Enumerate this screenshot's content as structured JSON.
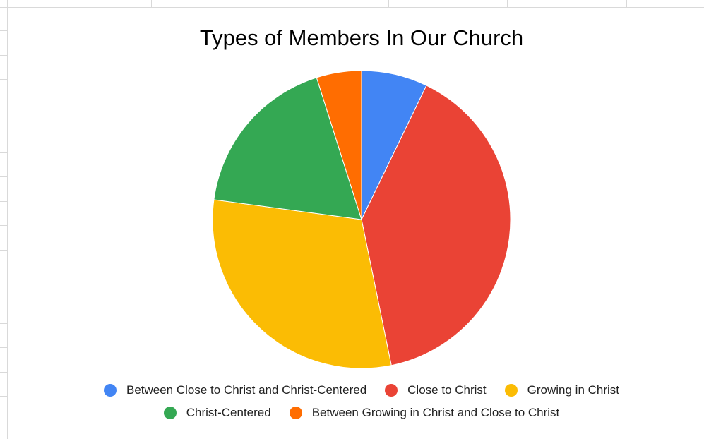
{
  "chart_data": {
    "type": "pie",
    "title": "Types of Members In Our Church",
    "legend_position": "bottom",
    "start_angle_deg": 0,
    "direction": "clockwise",
    "slices": [
      {
        "label": "Between Close to Christ and Christ-Centered",
        "value": 7.5,
        "color": "#4285f4"
      },
      {
        "label": "Close to Christ",
        "value": 41.4,
        "color": "#ea4335"
      },
      {
        "label": "Growing in Christ",
        "value": 31.7,
        "color": "#fbbc04"
      },
      {
        "label": "Christ-Centered",
        "value": 18.8,
        "color": "#34a853"
      },
      {
        "label": "Between Growing in Christ and Close to Christ",
        "value": 5.1,
        "color": "#ff6d01"
      }
    ]
  },
  "legend": {
    "rows": [
      [
        0,
        1,
        2
      ],
      [
        3,
        4
      ]
    ]
  }
}
